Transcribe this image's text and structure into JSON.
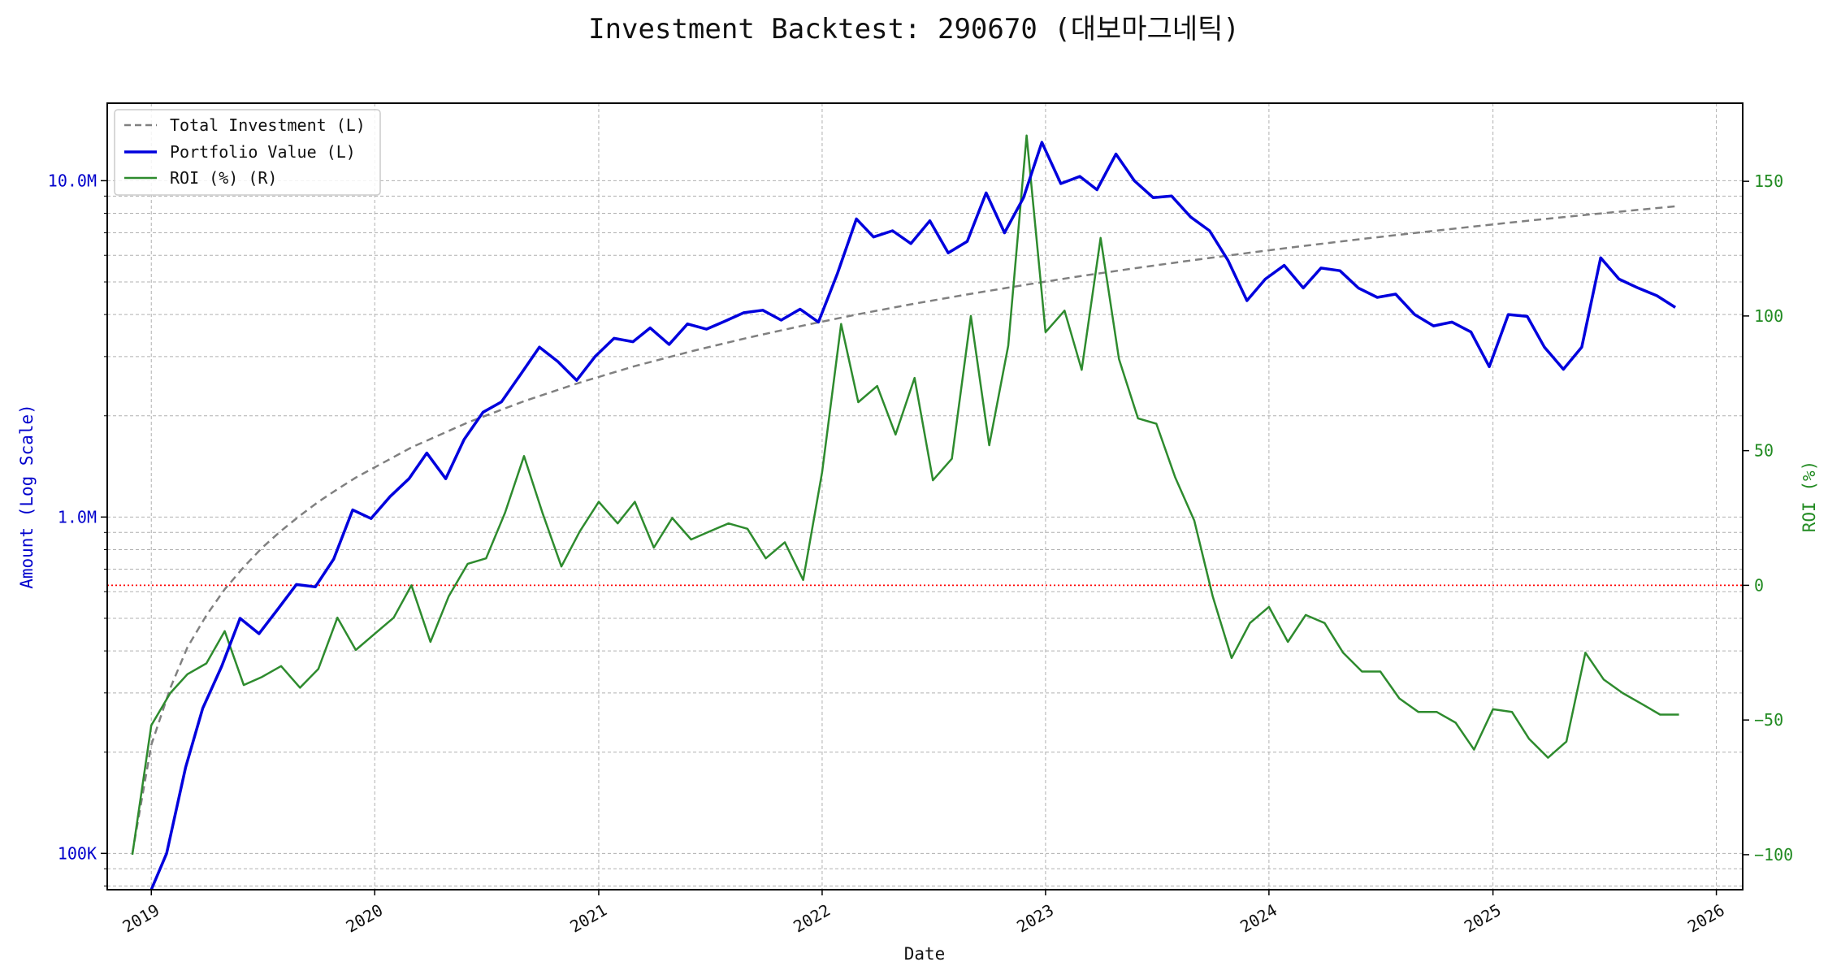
{
  "chart_data": {
    "type": "line",
    "title": "Investment Backtest: 290670 (대보마그네틱)",
    "xlabel": "Date",
    "ylabel_left": "Amount (Log Scale)",
    "ylabel_right": "ROI (%)",
    "left_scale": "log",
    "ylim_left": [
      78000,
      17000000
    ],
    "ylim_right": [
      -113,
      179
    ],
    "xlim": [
      "2018-10-21",
      "2026-02-13"
    ],
    "grid": true,
    "legend_placement": "top-left",
    "reference_line": {
      "axis": "right",
      "value": 0,
      "style": "dotted",
      "color": "#ff0000"
    },
    "x_ticks": [
      {
        "date": "2019-01-01",
        "label": "2019"
      },
      {
        "date": "2020-01-01",
        "label": "2020"
      },
      {
        "date": "2021-01-01",
        "label": "2021"
      },
      {
        "date": "2022-01-01",
        "label": "2022"
      },
      {
        "date": "2023-01-01",
        "label": "2023"
      },
      {
        "date": "2024-01-01",
        "label": "2024"
      },
      {
        "date": "2025-01-01",
        "label": "2025"
      },
      {
        "date": "2026-01-01",
        "label": "2026"
      }
    ],
    "y_ticks_left": [
      {
        "value": 100000,
        "label": "100K"
      },
      {
        "value": 1000000,
        "label": "1.0M"
      },
      {
        "value": 10000000,
        "label": "10.0M"
      }
    ],
    "y_ticks_right": [
      {
        "value": -100,
        "label": "−100"
      },
      {
        "value": -50,
        "label": "−50"
      },
      {
        "value": 0,
        "label": "0"
      },
      {
        "value": 50,
        "label": "50"
      },
      {
        "value": 100,
        "label": "100"
      },
      {
        "value": 150,
        "label": "150"
      }
    ],
    "colors": {
      "investment": "#808080",
      "portfolio": "#0000dd",
      "roi": "#2e8b2e",
      "left_axis": "#0000cc",
      "right_axis": "#228b22",
      "zero_line": "#ff0000",
      "grid": "#b0b0b0"
    },
    "legend": [
      {
        "label": "Total Investment (L)",
        "style": "dashed",
        "color": "#808080"
      },
      {
        "label": "Portfolio Value (L)",
        "style": "solid-thick",
        "color": "#0000dd"
      },
      {
        "label": "ROI (%) (R)",
        "style": "solid",
        "color": "#2e8b2e"
      }
    ],
    "series": [
      {
        "name": "Total Investment (L)",
        "axis": "left",
        "dates": [
          "2018-12-01",
          "2019-01-01",
          "2019-02-01",
          "2019-03-01",
          "2019-04-01",
          "2019-05-01",
          "2019-06-01",
          "2019-07-01",
          "2019-08-01",
          "2019-09-01",
          "2019-10-01",
          "2019-11-01",
          "2019-12-01",
          "2020-03-01",
          "2020-06-01",
          "2020-09-01",
          "2020-12-01",
          "2021-03-01",
          "2021-06-01",
          "2021-09-01",
          "2021-12-01",
          "2022-03-01",
          "2022-06-01",
          "2022-09-01",
          "2022-12-01",
          "2023-03-01",
          "2023-06-01",
          "2023-09-01",
          "2023-12-01",
          "2024-03-01",
          "2024-06-01",
          "2024-09-01",
          "2024-12-01",
          "2025-03-01",
          "2025-06-01",
          "2025-09-01",
          "2025-11-01"
        ],
        "values": [
          100000,
          210000,
          310000,
          410000,
          510000,
          610000,
          710000,
          810000,
          910000,
          1010000,
          1110000,
          1210000,
          1310000,
          1610000,
          1910000,
          2210000,
          2510000,
          2810000,
          3110000,
          3410000,
          3710000,
          4010000,
          4310000,
          4610000,
          4910000,
          5210000,
          5510000,
          5810000,
          6110000,
          6410000,
          6710000,
          7010000,
          7310000,
          7610000,
          7910000,
          8210000,
          8410000
        ]
      },
      {
        "name": "Portfolio Value (L)",
        "axis": "left",
        "dates": [
          "2019-01-01",
          "2019-01-26",
          "2019-02-26",
          "2019-03-26",
          "2019-04-26",
          "2019-05-26",
          "2019-06-26",
          "2019-07-26",
          "2019-08-26",
          "2019-09-26",
          "2019-10-26",
          "2019-11-26",
          "2019-12-26",
          "2020-01-26",
          "2020-02-26",
          "2020-03-26",
          "2020-04-26",
          "2020-05-26",
          "2020-06-26",
          "2020-07-26",
          "2020-08-26",
          "2020-09-26",
          "2020-10-26",
          "2020-11-26",
          "2020-12-26",
          "2021-01-26",
          "2021-02-26",
          "2021-03-26",
          "2021-04-26",
          "2021-05-26",
          "2021-06-26",
          "2021-07-26",
          "2021-08-26",
          "2021-09-26",
          "2021-10-26",
          "2021-11-26",
          "2021-12-26",
          "2022-01-26",
          "2022-02-26",
          "2022-03-26",
          "2022-04-26",
          "2022-05-26",
          "2022-06-26",
          "2022-07-26",
          "2022-08-26",
          "2022-09-26",
          "2022-10-26",
          "2022-11-26",
          "2022-12-26",
          "2023-01-26",
          "2023-02-26",
          "2023-03-26",
          "2023-04-26",
          "2023-05-26",
          "2023-06-26",
          "2023-07-26",
          "2023-08-26",
          "2023-09-26",
          "2023-10-26",
          "2023-11-26",
          "2023-12-26",
          "2024-01-26",
          "2024-02-26",
          "2024-03-26",
          "2024-04-26",
          "2024-05-26",
          "2024-06-26",
          "2024-07-26",
          "2024-08-26",
          "2024-09-26",
          "2024-10-26",
          "2024-11-26",
          "2024-12-26",
          "2025-01-26",
          "2025-02-26",
          "2025-03-26",
          "2025-04-26",
          "2025-05-26",
          "2025-06-26",
          "2025-07-26",
          "2025-08-26",
          "2025-09-26",
          "2025-10-26"
        ],
        "values": [
          78000,
          100000,
          180000,
          270000,
          360000,
          500000,
          450000,
          530000,
          630000,
          620000,
          750000,
          1050000,
          990000,
          1150000,
          1300000,
          1550000,
          1300000,
          1700000,
          2050000,
          2200000,
          2650000,
          3200000,
          2900000,
          2550000,
          3000000,
          3400000,
          3320000,
          3650000,
          3260000,
          3750000,
          3620000,
          3820000,
          4050000,
          4120000,
          3850000,
          4150000,
          3800000,
          5300000,
          7700000,
          6800000,
          7100000,
          6500000,
          7600000,
          6100000,
          6600000,
          9200000,
          7000000,
          8900000,
          13000000,
          9800000,
          10300000,
          9400000,
          12000000,
          10000000,
          8900000,
          9000000,
          7800000,
          7100000,
          5800000,
          4400000,
          5100000,
          5600000,
          4800000,
          5500000,
          5400000,
          4800000,
          4500000,
          4600000,
          4000000,
          3700000,
          3800000,
          3550000,
          2800000,
          4000000,
          3950000,
          3200000,
          2750000,
          3200000,
          5900000,
          5100000,
          4800000,
          4550000,
          4200000
        ]
      },
      {
        "name": "ROI (%) (R)",
        "axis": "right",
        "dates": [
          "2018-12-01",
          "2019-01-01",
          "2019-02-01",
          "2019-03-01",
          "2019-04-01",
          "2019-05-01",
          "2019-06-01",
          "2019-07-01",
          "2019-08-01",
          "2019-09-01",
          "2019-10-01",
          "2019-11-01",
          "2019-12-01",
          "2020-01-01",
          "2020-02-01",
          "2020-03-01",
          "2020-04-01",
          "2020-05-01",
          "2020-06-01",
          "2020-07-01",
          "2020-08-01",
          "2020-09-01",
          "2020-10-01",
          "2020-11-01",
          "2020-12-01",
          "2021-01-01",
          "2021-02-01",
          "2021-03-01",
          "2021-04-01",
          "2021-05-01",
          "2021-06-01",
          "2021-07-01",
          "2021-08-01",
          "2021-09-01",
          "2021-10-01",
          "2021-11-01",
          "2021-12-01",
          "2022-01-01",
          "2022-02-01",
          "2022-03-01",
          "2022-04-01",
          "2022-05-01",
          "2022-06-01",
          "2022-07-01",
          "2022-08-01",
          "2022-09-01",
          "2022-10-01",
          "2022-11-01",
          "2022-12-01",
          "2023-01-01",
          "2023-02-01",
          "2023-03-01",
          "2023-04-01",
          "2023-05-01",
          "2023-06-01",
          "2023-07-01",
          "2023-08-01",
          "2023-09-01",
          "2023-10-01",
          "2023-11-01",
          "2023-12-01",
          "2024-01-01",
          "2024-02-01",
          "2024-03-01",
          "2024-04-01",
          "2024-05-01",
          "2024-06-01",
          "2024-07-01",
          "2024-08-01",
          "2024-09-01",
          "2024-10-01",
          "2024-11-01",
          "2024-12-01",
          "2025-01-01",
          "2025-02-01",
          "2025-03-01",
          "2025-04-01",
          "2025-05-01",
          "2025-06-01",
          "2025-07-01",
          "2025-08-01",
          "2025-09-01",
          "2025-10-01",
          "2025-11-01"
        ],
        "values": [
          -100,
          -52,
          -40,
          -33,
          -29,
          -17,
          -37,
          -34,
          -30,
          -38,
          -31,
          -12,
          -24,
          -18,
          -12,
          0,
          -21,
          -4,
          8,
          10,
          27,
          48,
          27,
          7,
          20,
          31,
          23,
          31,
          14,
          25,
          17,
          20,
          23,
          21,
          10,
          16,
          2,
          42,
          97,
          68,
          74,
          56,
          77,
          39,
          47,
          100,
          52,
          89,
          167,
          94,
          102,
          80,
          129,
          84,
          62,
          60,
          40,
          24,
          -4,
          -27,
          -14,
          -8,
          -21,
          -11,
          -14,
          -25,
          -32,
          -32,
          -42,
          -47,
          -47,
          -51,
          -61,
          -46,
          -47,
          -57,
          -64,
          -58,
          -25,
          -35,
          -40,
          -44,
          -48,
          -48
        ]
      }
    ]
  }
}
